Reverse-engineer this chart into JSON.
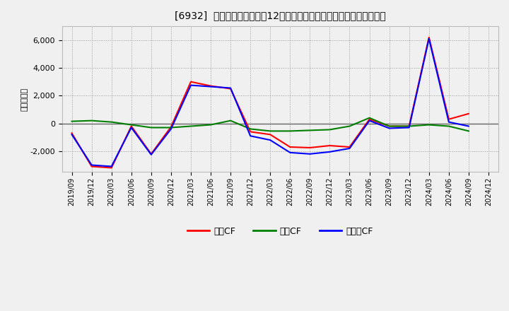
{
  "title": "[6932]  キャッシュフローの12か月移動合計の対前年同期増減額の推移",
  "ylabel": "（百万円）",
  "x_labels": [
    "2019/09",
    "2019/12",
    "2020/03",
    "2020/06",
    "2020/09",
    "2020/12",
    "2021/03",
    "2021/06",
    "2021/09",
    "2021/12",
    "2022/03",
    "2022/06",
    "2022/09",
    "2022/12",
    "2023/03",
    "2023/06",
    "2023/09",
    "2023/12",
    "2024/03",
    "2024/06",
    "2024/09",
    "2024/12"
  ],
  "eigyo_cf": [
    -700,
    -3100,
    -3200,
    -200,
    -2200,
    -250,
    3000,
    2700,
    2500,
    -600,
    -800,
    -1700,
    -1750,
    -1600,
    -1700,
    300,
    -200,
    -200,
    6200,
    300,
    700,
    null
  ],
  "toshi_cf": [
    150,
    200,
    100,
    -100,
    -300,
    -300,
    -200,
    -100,
    200,
    -400,
    -550,
    -550,
    -500,
    -450,
    -200,
    400,
    -200,
    -200,
    -100,
    -200,
    -550,
    null
  ],
  "free_cf": [
    -800,
    -3000,
    -3100,
    -300,
    -2250,
    -400,
    2750,
    2650,
    2550,
    -900,
    -1200,
    -2100,
    -2200,
    -2050,
    -1800,
    200,
    -350,
    -300,
    6100,
    100,
    -200,
    null
  ],
  "eigyo_color": "#ff0000",
  "toshi_color": "#008000",
  "free_color": "#0000ff",
  "background_color": "#f0f0f0",
  "plot_background": "#f0f0f0",
  "grid_color": "#aaaaaa",
  "ylim": [
    -3500,
    7000
  ],
  "yticks": [
    -2000,
    0,
    2000,
    4000,
    6000
  ],
  "legend_labels": [
    "営業CF",
    "投資CF",
    "フリーCF"
  ]
}
